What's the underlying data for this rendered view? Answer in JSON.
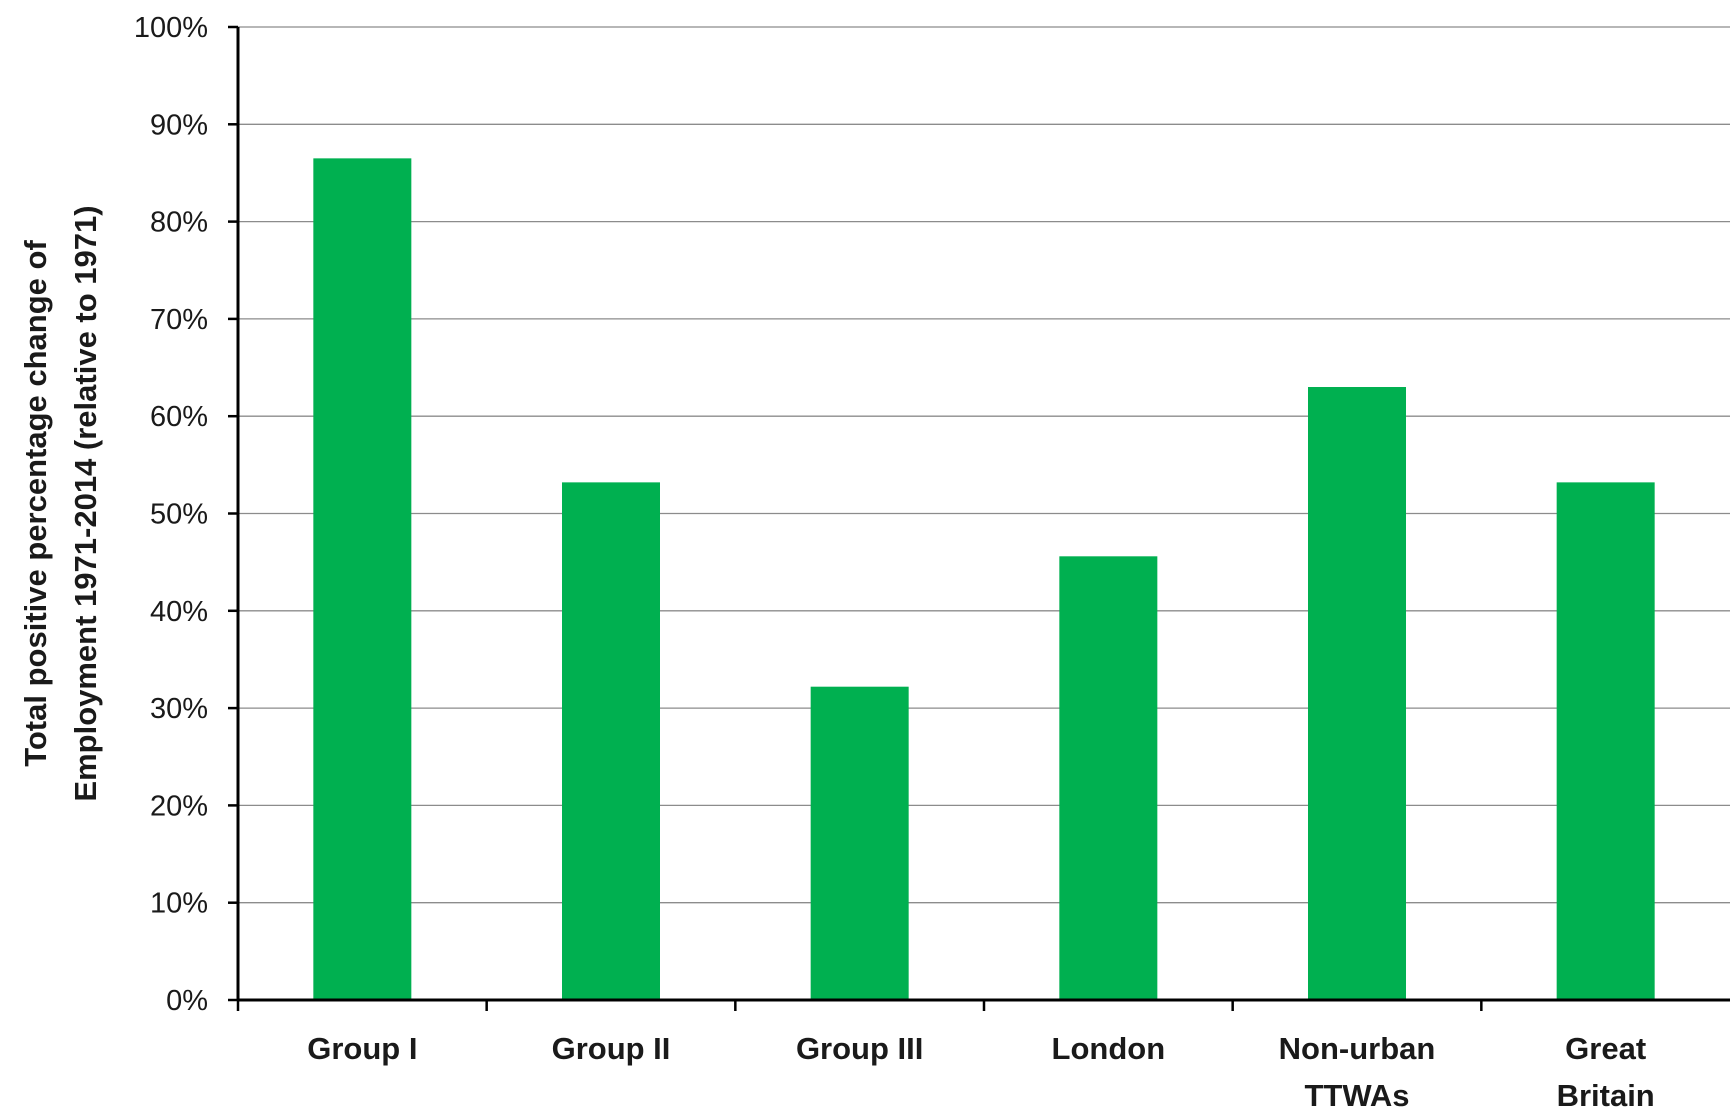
{
  "chart_data": {
    "type": "bar",
    "categories": [
      [
        "Group I"
      ],
      [
        "Group II"
      ],
      [
        "Group III"
      ],
      [
        "London"
      ],
      [
        "Non-urban",
        "TTWAs"
      ],
      [
        "Great",
        "Britain"
      ]
    ],
    "values": [
      86.5,
      53.2,
      32.2,
      45.6,
      63.0,
      53.2
    ],
    "title": "",
    "xlabel": "",
    "ylabel": [
      "Total positive percentage change of",
      "Employment 1971-2014 (relative to 1971)"
    ],
    "ylim": [
      0,
      100
    ],
    "y_ticks": [
      "0%",
      "10%",
      "20%",
      "30%",
      "40%",
      "50%",
      "60%",
      "70%",
      "80%",
      "90%",
      "100%"
    ],
    "grid": true,
    "legend": "none",
    "colors": {
      "bar": "#00b050",
      "grid": "#8c8c8c",
      "axis": "#000000"
    }
  }
}
